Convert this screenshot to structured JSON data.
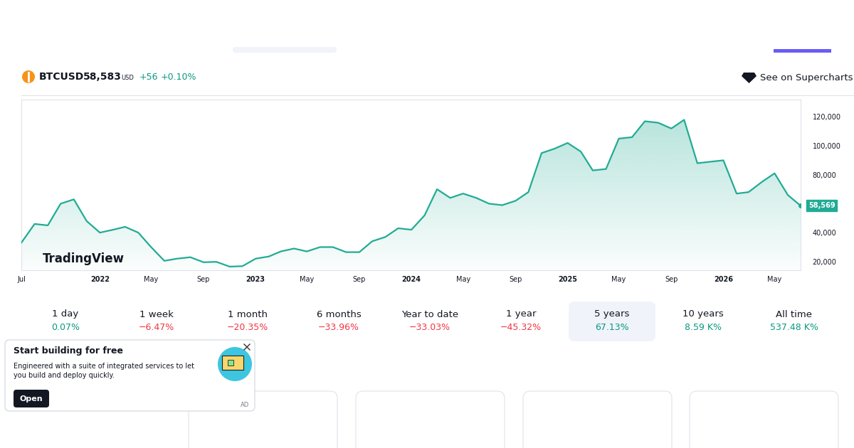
{
  "header": {
    "symbol": "BTCUSD",
    "price": "58,583",
    "currency": "USD",
    "change": "+56",
    "change_percent": "+0.10%",
    "link": "See on Supercharts"
  },
  "chart_data": {
    "type": "area",
    "watermark": "TradingView",
    "color": "#22ab94",
    "x": [
      "2021-07",
      "2021-08",
      "2021-09",
      "2021-10",
      "2021-11",
      "2021-12",
      "2022-01",
      "2022-02",
      "2022-03",
      "2022-04",
      "2022-05",
      "2022-06",
      "2022-07",
      "2022-08",
      "2022-09",
      "2022-10",
      "2022-11",
      "2022-12",
      "2023-01",
      "2023-02",
      "2023-03",
      "2023-04",
      "2023-05",
      "2023-06",
      "2023-07",
      "2023-08",
      "2023-09",
      "2023-10",
      "2023-11",
      "2023-12",
      "2024-01",
      "2024-02",
      "2024-03",
      "2024-04",
      "2024-05",
      "2024-06",
      "2024-07",
      "2024-08",
      "2024-09",
      "2024-10",
      "2024-11",
      "2024-12",
      "2025-01",
      "2025-02",
      "2025-03",
      "2025-04",
      "2025-05",
      "2025-06",
      "2025-07",
      "2025-08",
      "2025-09",
      "2025-10",
      "2025-11",
      "2025-12",
      "2026-01",
      "2026-02",
      "2026-03",
      "2026-04",
      "2026-05",
      "2026-06",
      "2026-07"
    ],
    "values": [
      33000,
      46000,
      45000,
      60000,
      63000,
      48000,
      40000,
      42000,
      44000,
      40000,
      30000,
      20500,
      22000,
      23000,
      19500,
      19800,
      16500,
      16800,
      22000,
      23500,
      27000,
      29000,
      27000,
      30000,
      30000,
      26500,
      26500,
      34000,
      37000,
      43000,
      42000,
      52000,
      70000,
      64000,
      67000,
      64000,
      60000,
      59000,
      62000,
      68000,
      95000,
      98000,
      102000,
      96000,
      83000,
      84000,
      105000,
      106000,
      117000,
      116000,
      112000,
      118000,
      88000,
      89000,
      90000,
      67000,
      68000,
      75000,
      81000,
      66000,
      58569
    ],
    "last_label": "58,569",
    "xlim": [
      "2021-07",
      "2026-07"
    ],
    "xticks": [
      {
        "value": "2021-07",
        "label": "Jul"
      },
      {
        "value": "2022-01",
        "label": "2022"
      },
      {
        "value": "2022-05",
        "label": "May"
      },
      {
        "value": "2022-09",
        "label": "Sep"
      },
      {
        "value": "2023-01",
        "label": "2023"
      },
      {
        "value": "2023-05",
        "label": "May"
      },
      {
        "value": "2023-09",
        "label": "Sep"
      },
      {
        "value": "2024-01",
        "label": "2024"
      },
      {
        "value": "2024-05",
        "label": "May"
      },
      {
        "value": "2024-09",
        "label": "Sep"
      },
      {
        "value": "2025-01",
        "label": "2025"
      },
      {
        "value": "2025-05",
        "label": "May"
      },
      {
        "value": "2025-09",
        "label": "Sep"
      },
      {
        "value": "2026-01",
        "label": "2026"
      },
      {
        "value": "2026-05",
        "label": "May"
      }
    ],
    "ylim": [
      14000,
      132000
    ],
    "yticks": [
      {
        "value": 20000,
        "label": "20,000"
      },
      {
        "value": 40000,
        "label": "40,000"
      },
      {
        "value": 60000,
        "label": "60,000"
      },
      {
        "value": 80000,
        "label": "80,000"
      },
      {
        "value": 100000,
        "label": "100,000"
      },
      {
        "value": 120000,
        "label": "120,000"
      }
    ],
    "grid": false
  },
  "periods": [
    {
      "label": "1 day",
      "change": "0.07%"
    },
    {
      "label": "1 week",
      "change": "−6.47%"
    },
    {
      "label": "1 month",
      "change": "−20.35%"
    },
    {
      "label": "6 months",
      "change": "−33.96%"
    },
    {
      "label": "Year to date",
      "change": "−33.03%"
    },
    {
      "label": "1 year",
      "change": "−45.32%"
    },
    {
      "label": "5 years",
      "change": "67.13%",
      "selected": true
    },
    {
      "label": "10 years",
      "change": "8.59 K%"
    },
    {
      "label": "All time",
      "change": "537.48 K%"
    }
  ],
  "ad": {
    "title": "Start building for free",
    "text": [
      "Engineered with a suite of integrated services to let",
      "you build and deploy quickly."
    ],
    "button": "Open",
    "tag": "AD"
  }
}
